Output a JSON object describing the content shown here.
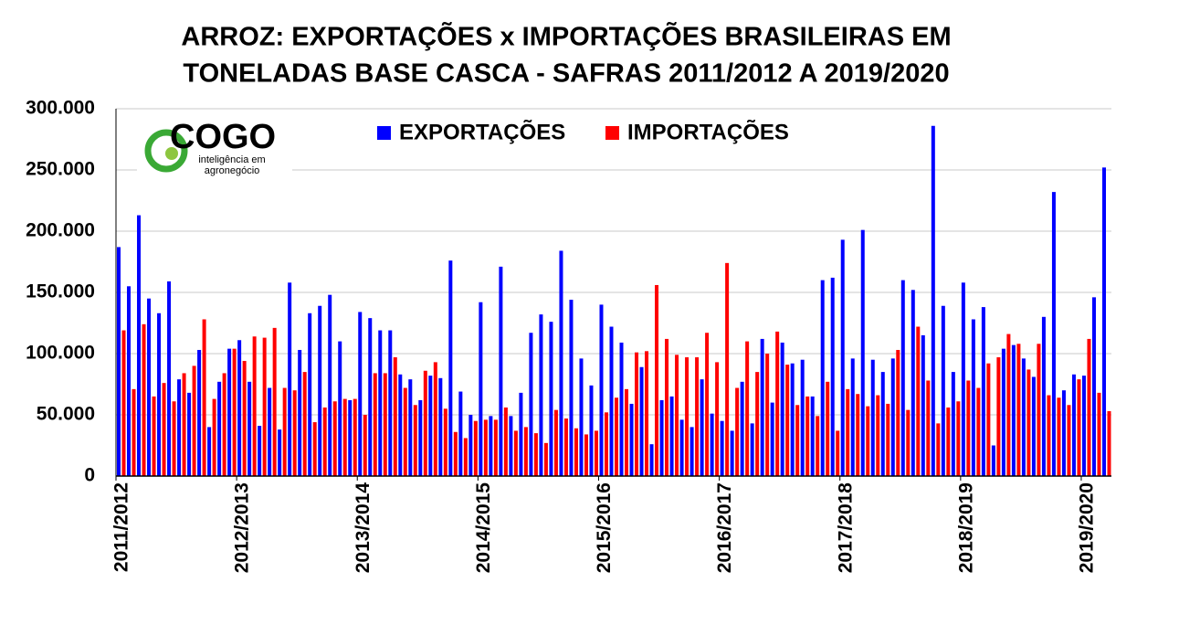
{
  "chart_data": {
    "type": "bar",
    "title": [
      "ARROZ: EXPORTAÇÕES x IMPORTAÇÕES BRASILEIRAS EM",
      "TONELADAS BASE CASCA - SAFRAS 2011/2012 A 2019/2020"
    ],
    "logo": {
      "name": "COGO",
      "tagline": [
        "inteligência em",
        "agronegócio"
      ]
    },
    "categories": [
      "2011/2012",
      null,
      null,
      null,
      null,
      null,
      null,
      null,
      null,
      null,
      null,
      null,
      "2012/2013",
      null,
      null,
      null,
      null,
      null,
      null,
      null,
      null,
      null,
      null,
      null,
      "2013/2014",
      null,
      null,
      null,
      null,
      null,
      null,
      null,
      null,
      null,
      null,
      null,
      "2014/2015",
      null,
      null,
      null,
      null,
      null,
      null,
      null,
      null,
      null,
      null,
      null,
      "2015/2016",
      null,
      null,
      null,
      null,
      null,
      null,
      null,
      null,
      null,
      null,
      null,
      "2016/2017",
      null,
      null,
      null,
      null,
      null,
      null,
      null,
      null,
      null,
      null,
      null,
      "2017/2018",
      null,
      null,
      null,
      null,
      null,
      null,
      null,
      null,
      null,
      null,
      null,
      "2018/2019",
      null,
      null,
      null,
      null,
      null,
      null,
      null,
      null,
      null,
      null,
      null,
      "2019/2020",
      null,
      null
    ],
    "series": [
      {
        "name": "EXPORTAÇÕES",
        "color": "#0000ff",
        "values": [
          187000,
          155000,
          213000,
          145000,
          133000,
          159000,
          79000,
          68000,
          103000,
          40000,
          77000,
          104000,
          111000,
          77000,
          41000,
          72000,
          38000,
          158000,
          103000,
          133000,
          139000,
          148000,
          110000,
          62000,
          134000,
          129000,
          119000,
          119000,
          83000,
          79000,
          62000,
          82000,
          80000,
          176000,
          69000,
          50000,
          142000,
          49000,
          171000,
          49000,
          68000,
          117000,
          132000,
          126000,
          184000,
          144000,
          96000,
          74000,
          140000,
          122000,
          109000,
          59000,
          89000,
          26000,
          62000,
          65000,
          46000,
          40000,
          79000,
          51000,
          45000,
          37000,
          77000,
          43000,
          112000,
          60000,
          109000,
          92000,
          95000,
          65000,
          160000,
          162000,
          193000,
          96000,
          201000,
          95000,
          85000,
          96000,
          160000,
          152000,
          115000,
          286000,
          139000,
          85000,
          158000,
          128000,
          138000,
          25000,
          104000,
          107000,
          96000,
          81000,
          130000,
          232000,
          70000,
          83000,
          82000,
          146000,
          252000
        ]
      },
      {
        "name": "IMPORTAÇÕES",
        "color": "#ff0000",
        "values": [
          119000,
          71000,
          124000,
          65000,
          76000,
          61000,
          84000,
          90000,
          128000,
          63000,
          84000,
          104000,
          94000,
          114000,
          113000,
          121000,
          72000,
          70000,
          85000,
          44000,
          56000,
          61000,
          63000,
          63000,
          50000,
          84000,
          84000,
          97000,
          72000,
          58000,
          86000,
          93000,
          55000,
          36000,
          31000,
          45000,
          46000,
          46000,
          56000,
          37000,
          40000,
          35000,
          27000,
          54000,
          47000,
          39000,
          34000,
          37000,
          52000,
          64000,
          71000,
          101000,
          102000,
          156000,
          112000,
          99000,
          97000,
          97000,
          117000,
          93000,
          174000,
          72000,
          110000,
          85000,
          100000,
          118000,
          91000,
          58000,
          65000,
          49000,
          77000,
          37000,
          71000,
          67000,
          57000,
          66000,
          59000,
          103000,
          54000,
          122000,
          78000,
          43000,
          56000,
          61000,
          78000,
          72000,
          92000,
          97000,
          116000,
          108000,
          87000,
          108000,
          66000,
          64000,
          58000,
          79000,
          112000,
          68000,
          53000
        ]
      }
    ],
    "ylim": [
      0,
      300000
    ],
    "yticks": [
      0,
      {
        "value": 50000,
        "label": "50.000"
      },
      {
        "value": 100000,
        "label": "100.000"
      },
      {
        "value": 150000,
        "label": "150.000"
      },
      {
        "value": 200000,
        "label": "200.000"
      },
      {
        "value": 250000,
        "label": "250.000"
      },
      {
        "value": 300000,
        "label": "300.000"
      }
    ],
    "grid": true
  }
}
